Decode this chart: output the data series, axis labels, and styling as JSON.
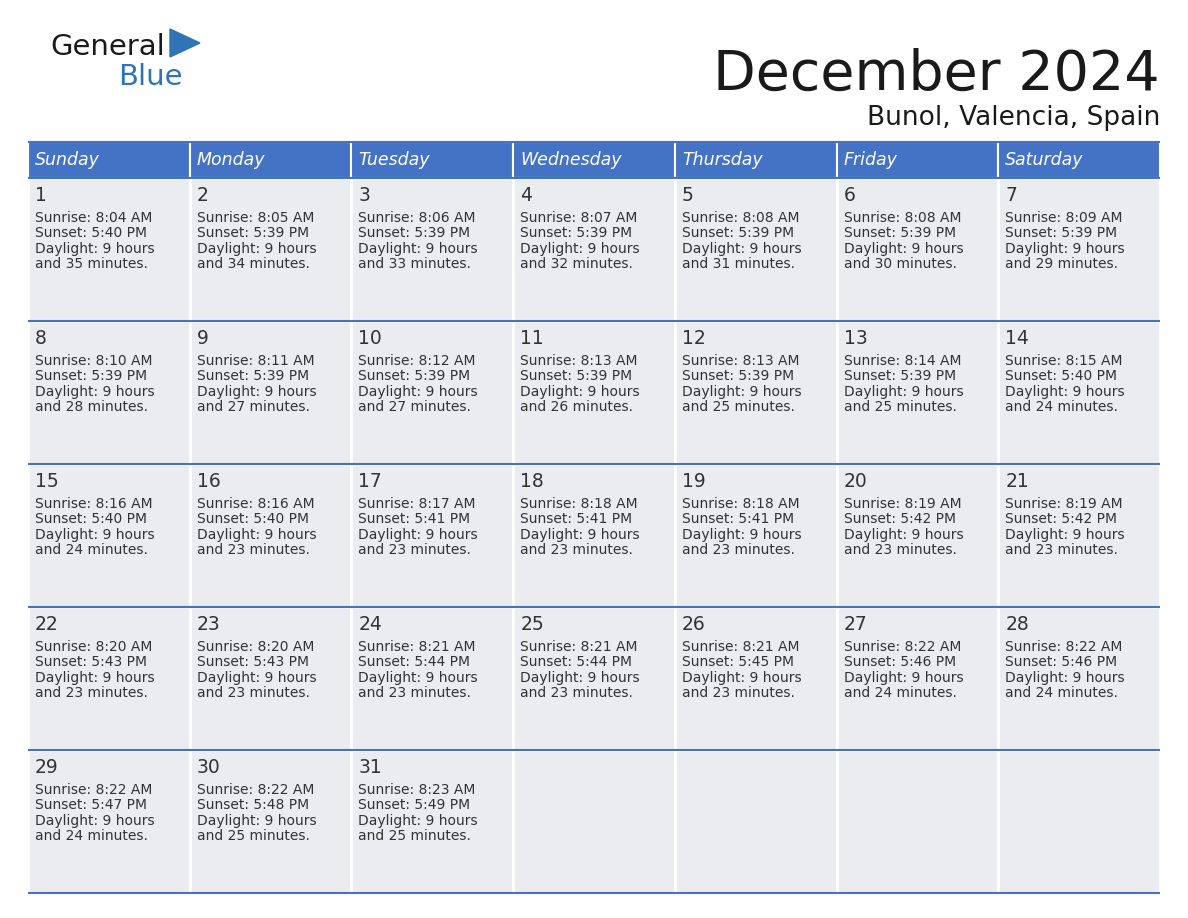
{
  "title": "December 2024",
  "subtitle": "Bunol, Valencia, Spain",
  "header_color": "#4472C4",
  "header_text_color": "#FFFFFF",
  "cell_bg_color": "#EAECF0",
  "text_color": "#333333",
  "border_color": "#4472C4",
  "days_of_week": [
    "Sunday",
    "Monday",
    "Tuesday",
    "Wednesday",
    "Thursday",
    "Friday",
    "Saturday"
  ],
  "calendar_data": [
    [
      {
        "day": 1,
        "sunrise": "8:04 AM",
        "sunset": "5:40 PM",
        "daylight_line2": "and 35 minutes."
      },
      {
        "day": 2,
        "sunrise": "8:05 AM",
        "sunset": "5:39 PM",
        "daylight_line2": "and 34 minutes."
      },
      {
        "day": 3,
        "sunrise": "8:06 AM",
        "sunset": "5:39 PM",
        "daylight_line2": "and 33 minutes."
      },
      {
        "day": 4,
        "sunrise": "8:07 AM",
        "sunset": "5:39 PM",
        "daylight_line2": "and 32 minutes."
      },
      {
        "day": 5,
        "sunrise": "8:08 AM",
        "sunset": "5:39 PM",
        "daylight_line2": "and 31 minutes."
      },
      {
        "day": 6,
        "sunrise": "8:08 AM",
        "sunset": "5:39 PM",
        "daylight_line2": "and 30 minutes."
      },
      {
        "day": 7,
        "sunrise": "8:09 AM",
        "sunset": "5:39 PM",
        "daylight_line2": "and 29 minutes."
      }
    ],
    [
      {
        "day": 8,
        "sunrise": "8:10 AM",
        "sunset": "5:39 PM",
        "daylight_line2": "and 28 minutes."
      },
      {
        "day": 9,
        "sunrise": "8:11 AM",
        "sunset": "5:39 PM",
        "daylight_line2": "and 27 minutes."
      },
      {
        "day": 10,
        "sunrise": "8:12 AM",
        "sunset": "5:39 PM",
        "daylight_line2": "and 27 minutes."
      },
      {
        "day": 11,
        "sunrise": "8:13 AM",
        "sunset": "5:39 PM",
        "daylight_line2": "and 26 minutes."
      },
      {
        "day": 12,
        "sunrise": "8:13 AM",
        "sunset": "5:39 PM",
        "daylight_line2": "and 25 minutes."
      },
      {
        "day": 13,
        "sunrise": "8:14 AM",
        "sunset": "5:39 PM",
        "daylight_line2": "and 25 minutes."
      },
      {
        "day": 14,
        "sunrise": "8:15 AM",
        "sunset": "5:40 PM",
        "daylight_line2": "and 24 minutes."
      }
    ],
    [
      {
        "day": 15,
        "sunrise": "8:16 AM",
        "sunset": "5:40 PM",
        "daylight_line2": "and 24 minutes."
      },
      {
        "day": 16,
        "sunrise": "8:16 AM",
        "sunset": "5:40 PM",
        "daylight_line2": "and 23 minutes."
      },
      {
        "day": 17,
        "sunrise": "8:17 AM",
        "sunset": "5:41 PM",
        "daylight_line2": "and 23 minutes."
      },
      {
        "day": 18,
        "sunrise": "8:18 AM",
        "sunset": "5:41 PM",
        "daylight_line2": "and 23 minutes."
      },
      {
        "day": 19,
        "sunrise": "8:18 AM",
        "sunset": "5:41 PM",
        "daylight_line2": "and 23 minutes."
      },
      {
        "day": 20,
        "sunrise": "8:19 AM",
        "sunset": "5:42 PM",
        "daylight_line2": "and 23 minutes."
      },
      {
        "day": 21,
        "sunrise": "8:19 AM",
        "sunset": "5:42 PM",
        "daylight_line2": "and 23 minutes."
      }
    ],
    [
      {
        "day": 22,
        "sunrise": "8:20 AM",
        "sunset": "5:43 PM",
        "daylight_line2": "and 23 minutes."
      },
      {
        "day": 23,
        "sunrise": "8:20 AM",
        "sunset": "5:43 PM",
        "daylight_line2": "and 23 minutes."
      },
      {
        "day": 24,
        "sunrise": "8:21 AM",
        "sunset": "5:44 PM",
        "daylight_line2": "and 23 minutes."
      },
      {
        "day": 25,
        "sunrise": "8:21 AM",
        "sunset": "5:44 PM",
        "daylight_line2": "and 23 minutes."
      },
      {
        "day": 26,
        "sunrise": "8:21 AM",
        "sunset": "5:45 PM",
        "daylight_line2": "and 23 minutes."
      },
      {
        "day": 27,
        "sunrise": "8:22 AM",
        "sunset": "5:46 PM",
        "daylight_line2": "and 24 minutes."
      },
      {
        "day": 28,
        "sunrise": "8:22 AM",
        "sunset": "5:46 PM",
        "daylight_line2": "and 24 minutes."
      }
    ],
    [
      {
        "day": 29,
        "sunrise": "8:22 AM",
        "sunset": "5:47 PM",
        "daylight_line2": "and 24 minutes."
      },
      {
        "day": 30,
        "sunrise": "8:22 AM",
        "sunset": "5:48 PM",
        "daylight_line2": "and 25 minutes."
      },
      {
        "day": 31,
        "sunrise": "8:23 AM",
        "sunset": "5:49 PM",
        "daylight_line2": "and 25 minutes."
      },
      null,
      null,
      null,
      null
    ]
  ],
  "logo_general_color": "#1a1a1a",
  "logo_blue_color": "#2E75B6",
  "logo_triangle_color": "#2E75B6",
  "fig_width": 11.88,
  "fig_height": 9.18,
  "fig_dpi": 100
}
